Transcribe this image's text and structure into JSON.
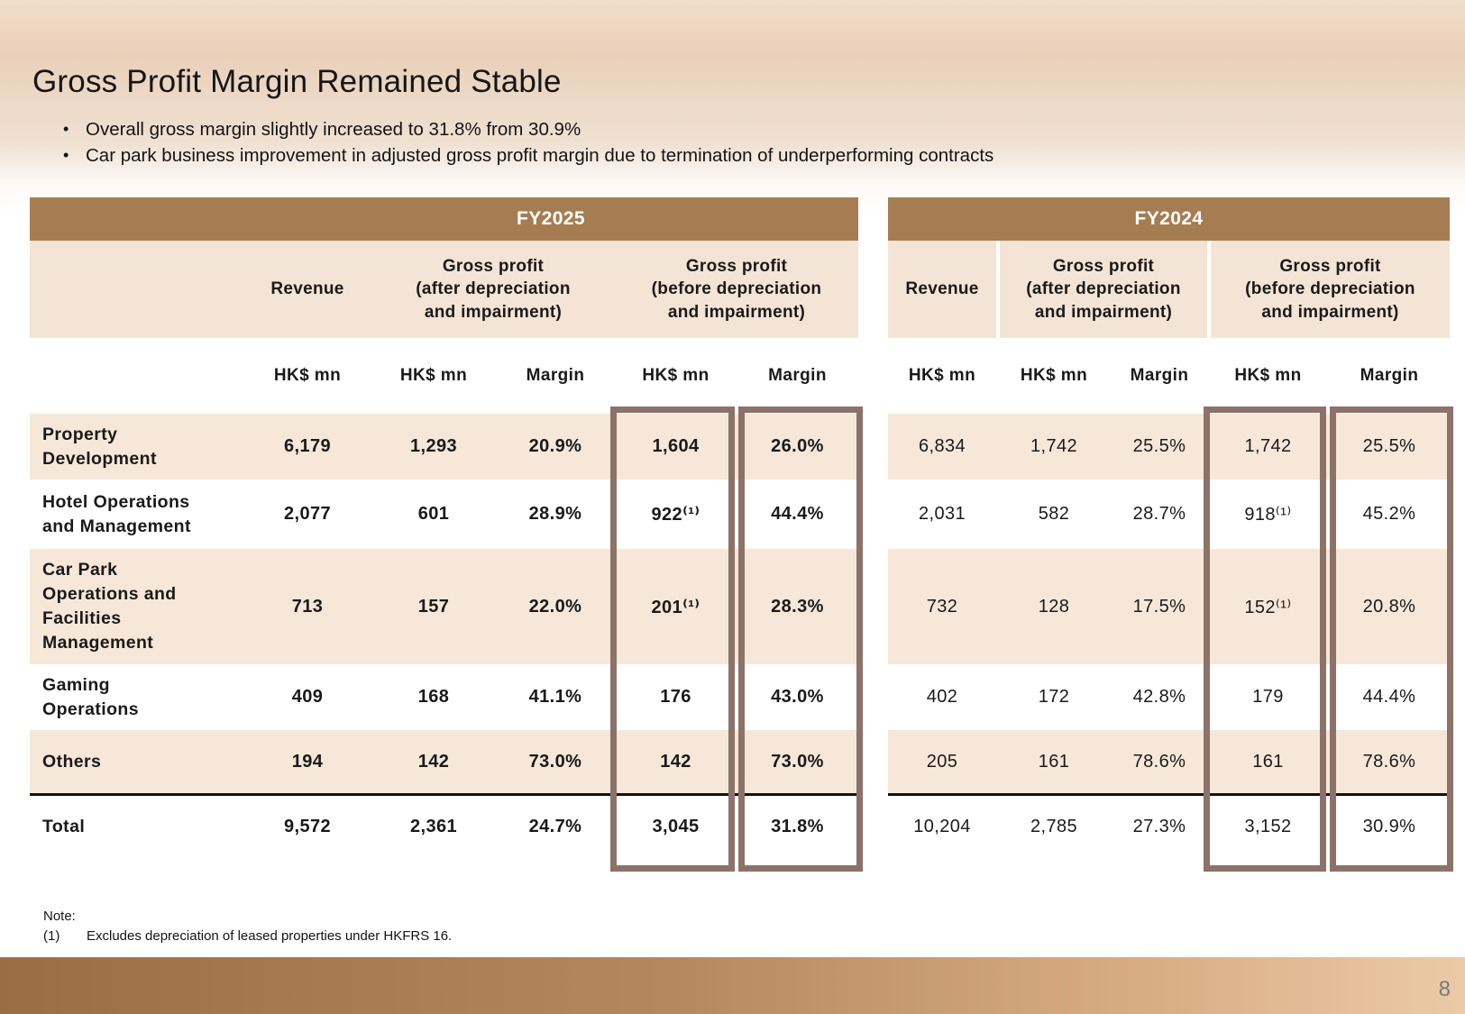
{
  "slide": {
    "title": "Gross Profit Margin Remained Stable",
    "bullets": [
      "Overall gross margin slightly increased to 31.8% from 30.9%",
      "Car park business improvement in adjusted gross profit margin due to termination of underperforming contracts"
    ],
    "page_number": "8"
  },
  "table": {
    "unit_headers": [
      "HK$ mn",
      "HK$ mn",
      "Margin",
      "HK$ mn",
      "Margin"
    ],
    "column_groups": [
      "Revenue",
      "Gross profit\n(after depreciation\nand impairment)",
      "Gross profit\n(before depreciation\nand impairment)"
    ],
    "row_labels": [
      "Property\nDevelopment",
      "Hotel Operations\nand Management",
      "Car Park\nOperations and\nFacilities\nManagement",
      "Gaming\nOperations",
      "Others"
    ],
    "total_label": "Total",
    "periods": [
      {
        "year": "FY2025",
        "rows": [
          [
            "6,179",
            "1,293",
            "20.9%",
            "1,604",
            "26.0%"
          ],
          [
            "2,077",
            "601",
            "28.9%",
            "922⁽¹⁾",
            "44.4%"
          ],
          [
            "713",
            "157",
            "22.0%",
            "201⁽¹⁾",
            "28.3%"
          ],
          [
            "409",
            "168",
            "41.1%",
            "176",
            "43.0%"
          ],
          [
            "194",
            "142",
            "73.0%",
            "142",
            "73.0%"
          ]
        ],
        "total": [
          "9,572",
          "2,361",
          "24.7%",
          "3,045",
          "31.8%"
        ]
      },
      {
        "year": "FY2024",
        "rows": [
          [
            "6,834",
            "1,742",
            "25.5%",
            "1,742",
            "25.5%"
          ],
          [
            "2,031",
            "582",
            "28.7%",
            "918⁽¹⁾",
            "45.2%"
          ],
          [
            "732",
            "128",
            "17.5%",
            "152⁽¹⁾",
            "20.8%"
          ],
          [
            "402",
            "172",
            "42.8%",
            "179",
            "44.4%"
          ],
          [
            "205",
            "161",
            "78.6%",
            "161",
            "78.6%"
          ]
        ],
        "total": [
          "10,204",
          "2,785",
          "27.3%",
          "3,152",
          "30.9%"
        ]
      }
    ]
  },
  "note": {
    "heading": "Note:",
    "items": [
      {
        "marker": "(1)",
        "text": "Excludes depreciation of leased properties under HKFRS 16."
      }
    ]
  },
  "colors": {
    "year_bar": "#a67d52",
    "header_beige": "#f4e4d5",
    "stripe_beige": "#f6e7d8",
    "highlight_border": "#8c7269",
    "footer_left": "#9b6d47",
    "footer_right": "#eccaa7",
    "page_number_color": "#7a7a7a"
  }
}
